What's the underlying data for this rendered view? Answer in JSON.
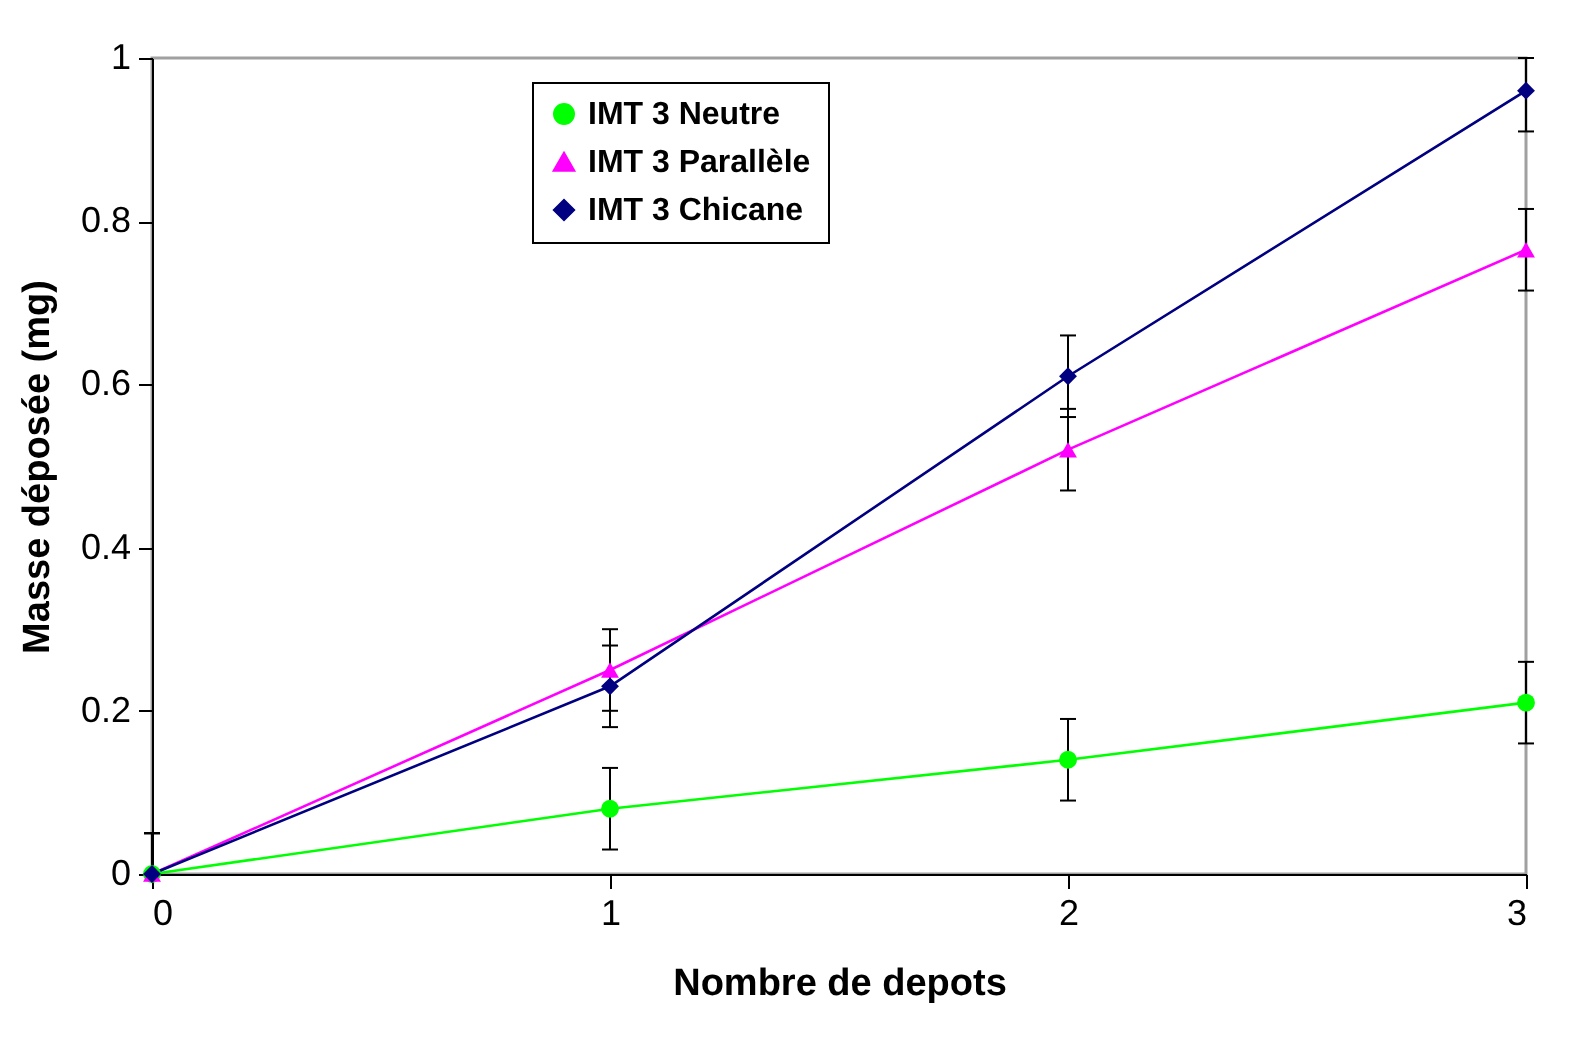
{
  "chart_data": {
    "type": "line",
    "xlabel": "Nombre de depots",
    "ylabel": "Masse déposée (mg)",
    "x": [
      0,
      1,
      2,
      3
    ],
    "series": [
      {
        "name": "IMT 3 Neutre",
        "color": "#00ff00",
        "marker": "circle",
        "values": [
          0,
          0.08,
          0.14,
          0.21
        ],
        "errors": [
          [
            0,
            0.05
          ],
          0.05,
          0.05,
          0.05
        ]
      },
      {
        "name": "IMT 3 Parallèle",
        "color": "#ff00ff",
        "marker": "triangle",
        "values": [
          0,
          0.25,
          0.52,
          0.765
        ],
        "errors": [
          [
            0,
            0.05
          ],
          0.05,
          0.05,
          0.05
        ]
      },
      {
        "name": "IMT 3 Chicane",
        "color": "#000080",
        "marker": "diamond",
        "values": [
          0,
          0.23,
          0.61,
          0.96
        ],
        "errors": [
          [
            0,
            0.05
          ],
          0.05,
          0.05,
          [
            0.91,
            1.0
          ]
        ]
      }
    ],
    "xlim": [
      0,
      3
    ],
    "xticks": [
      0,
      1,
      2,
      3
    ],
    "ylim": [
      0,
      1
    ],
    "yticks": [
      0,
      0.2,
      0.4,
      0.6,
      0.8,
      1
    ],
    "grid": false,
    "legend": "top",
    "line_style": "solid"
  }
}
